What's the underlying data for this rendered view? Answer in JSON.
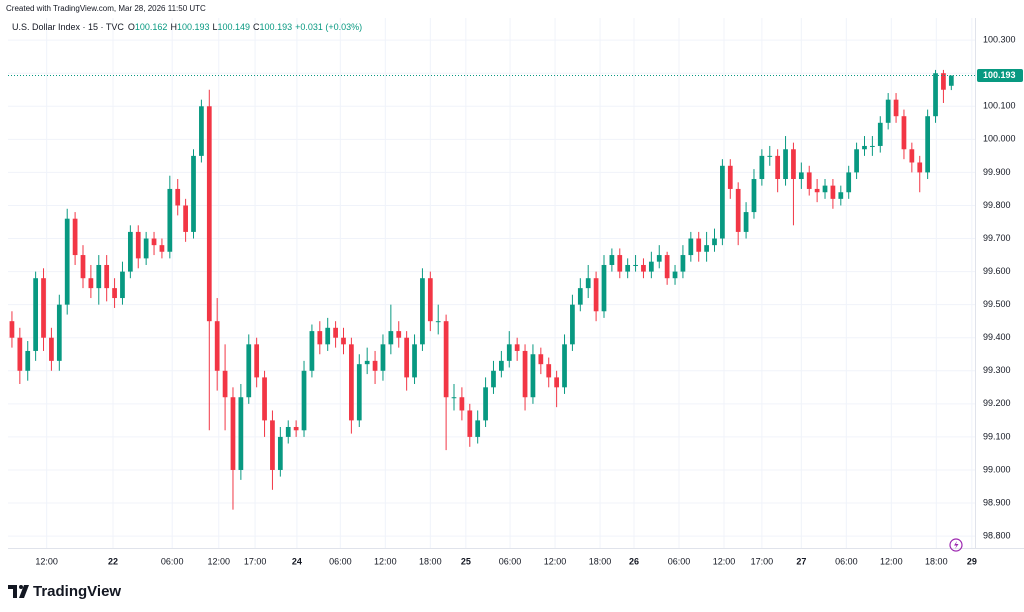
{
  "chart_data": {
    "type": "candlestick",
    "created": "Created with TradingView.com, Mar 28, 2026 11:50 UTC",
    "title": "U.S. Dollar Index · 15 · TVC",
    "ohlc_labels": [
      "O",
      "H",
      "L",
      "C"
    ],
    "change": "+0.031 (+0.03%)",
    "brand": "TradingView",
    "up_color": "#089981",
    "down_color": "#f23645",
    "grid": true,
    "open": [
      99.45,
      99.4,
      99.3,
      99.36,
      99.58,
      99.4,
      99.33,
      99.5,
      99.76,
      99.65,
      99.58,
      99.55,
      99.62,
      99.55,
      99.52,
      99.6,
      99.72,
      99.64,
      99.7,
      99.68,
      99.66,
      99.85,
      99.8,
      99.72,
      99.95,
      100.1,
      99.45,
      99.3,
      99.22,
      99.0,
      99.22,
      99.38,
      99.28,
      99.15,
      99.0,
      99.1,
      99.13,
      99.12,
      99.3,
      99.42,
      99.38,
      99.43,
      99.4,
      99.38,
      99.15,
      99.32,
      99.33,
      99.3,
      99.38,
      99.42,
      99.4,
      99.28,
      99.38,
      99.58,
      99.45,
      99.45,
      99.22,
      99.22,
      99.18,
      99.1,
      99.15,
      99.25,
      99.3,
      99.33,
      99.38,
      99.36,
      99.22,
      99.35,
      99.32,
      99.28,
      99.25,
      99.38,
      99.5,
      99.55,
      99.58,
      99.48,
      99.62,
      99.65,
      99.6,
      99.62,
      99.62,
      99.6,
      99.63,
      99.65,
      99.58,
      99.6,
      99.65,
      99.7,
      99.66,
      99.68,
      99.7,
      99.92,
      99.85,
      99.72,
      99.78,
      99.88,
      99.95,
      99.95,
      99.88,
      99.97,
      99.88,
      99.9,
      99.85,
      99.84,
      99.86,
      99.82,
      99.84,
      99.9,
      99.97,
      99.98,
      99.98,
      100.05,
      100.12,
      100.07,
      99.97,
      99.93,
      99.9,
      100.07,
      100.2,
      100.162
    ],
    "high": [
      99.48,
      99.43,
      99.39,
      99.6,
      99.61,
      99.43,
      99.53,
      99.79,
      99.78,
      99.68,
      99.62,
      99.65,
      99.65,
      99.58,
      99.63,
      99.74,
      99.74,
      99.72,
      99.72,
      99.7,
      99.89,
      99.88,
      99.82,
      99.97,
      100.12,
      100.15,
      99.52,
      99.38,
      99.25,
      99.26,
      99.41,
      99.4,
      99.3,
      99.18,
      99.13,
      99.15,
      99.15,
      99.33,
      99.44,
      99.45,
      99.46,
      99.45,
      99.43,
      99.4,
      99.35,
      99.37,
      99.36,
      99.41,
      99.5,
      99.45,
      99.42,
      99.41,
      99.61,
      99.6,
      99.5,
      99.47,
      99.26,
      99.25,
      99.2,
      99.18,
      99.28,
      99.33,
      99.36,
      99.42,
      99.4,
      99.38,
      99.38,
      99.37,
      99.34,
      99.3,
      99.41,
      99.53,
      99.58,
      99.62,
      99.6,
      99.65,
      99.67,
      99.67,
      99.64,
      99.65,
      99.64,
      99.66,
      99.68,
      99.66,
      99.62,
      99.68,
      99.72,
      99.72,
      99.72,
      99.73,
      99.94,
      99.94,
      99.87,
      99.81,
      99.91,
      99.97,
      99.98,
      99.97,
      100.01,
      99.99,
      99.93,
      99.92,
      99.88,
      99.88,
      99.88,
      99.86,
      99.92,
      99.99,
      100.01,
      100.01,
      100.07,
      100.14,
      100.14,
      100.09,
      99.99,
      99.95,
      100.09,
      100.21,
      100.21,
      100.193
    ],
    "low": [
      99.37,
      99.26,
      99.27,
      99.33,
      99.36,
      99.3,
      99.3,
      99.47,
      99.62,
      99.55,
      99.52,
      99.5,
      99.51,
      99.49,
      99.5,
      99.58,
      99.61,
      99.62,
      99.65,
      99.64,
      99.64,
      99.77,
      99.69,
      99.7,
      99.93,
      99.12,
      99.24,
      99.12,
      98.88,
      98.97,
      99.2,
      99.25,
      99.1,
      98.94,
      98.98,
      99.08,
      99.1,
      99.1,
      99.28,
      99.35,
      99.36,
      99.37,
      99.35,
      99.11,
      99.13,
      99.29,
      99.26,
      99.27,
      99.35,
      99.37,
      99.24,
      99.26,
      99.36,
      99.42,
      99.41,
      99.06,
      99.18,
      99.15,
      99.07,
      99.08,
      99.13,
      99.23,
      99.28,
      99.31,
      99.33,
      99.18,
      99.2,
      99.29,
      99.25,
      99.19,
      99.23,
      99.36,
      99.48,
      99.52,
      99.45,
      99.46,
      99.6,
      99.58,
      99.58,
      99.6,
      99.58,
      99.58,
      99.61,
      99.56,
      99.56,
      99.58,
      99.63,
      99.63,
      99.63,
      99.66,
      99.68,
      99.82,
      99.68,
      99.7,
      99.76,
      99.86,
      99.92,
      99.84,
      99.86,
      99.74,
      99.85,
      99.83,
      99.81,
      99.82,
      99.79,
      99.8,
      99.82,
      99.88,
      99.95,
      99.95,
      99.96,
      100.03,
      100.05,
      99.94,
      99.9,
      99.84,
      99.88,
      100.05,
      100.11,
      100.149
    ],
    "close": [
      99.4,
      99.3,
      99.36,
      99.58,
      99.4,
      99.33,
      99.5,
      99.76,
      99.65,
      99.58,
      99.55,
      99.62,
      99.55,
      99.52,
      99.6,
      99.72,
      99.64,
      99.7,
      99.68,
      99.66,
      99.85,
      99.8,
      99.72,
      99.95,
      100.1,
      99.45,
      99.3,
      99.22,
      99.0,
      99.22,
      99.38,
      99.28,
      99.15,
      99.0,
      99.1,
      99.13,
      99.12,
      99.3,
      99.42,
      99.38,
      99.43,
      99.4,
      99.38,
      99.15,
      99.32,
      99.33,
      99.3,
      99.38,
      99.42,
      99.4,
      99.28,
      99.38,
      99.58,
      99.45,
      99.45,
      99.22,
      99.22,
      99.18,
      99.1,
      99.15,
      99.25,
      99.3,
      99.33,
      99.38,
      99.36,
      99.22,
      99.35,
      99.32,
      99.28,
      99.25,
      99.38,
      99.5,
      99.55,
      99.58,
      99.48,
      99.62,
      99.65,
      99.6,
      99.62,
      99.62,
      99.6,
      99.63,
      99.65,
      99.58,
      99.6,
      99.65,
      99.7,
      99.66,
      99.68,
      99.7,
      99.92,
      99.85,
      99.72,
      99.78,
      99.88,
      99.95,
      99.95,
      99.88,
      99.97,
      99.88,
      99.9,
      99.85,
      99.84,
      99.86,
      99.82,
      99.84,
      99.9,
      99.97,
      99.98,
      99.98,
      100.05,
      100.12,
      100.07,
      99.97,
      99.93,
      99.9,
      100.07,
      100.2,
      100.15,
      100.193
    ],
    "ylim": [
      98.764,
      100.367
    ],
    "yticks": [
      {
        "value": 98.8,
        "label": "98.800"
      },
      {
        "value": 98.9,
        "label": "98.900"
      },
      {
        "value": 99.0,
        "label": "99.000"
      },
      {
        "value": 99.1,
        "label": "99.100"
      },
      {
        "value": 99.2,
        "label": "99.200"
      },
      {
        "value": 99.3,
        "label": "99.300"
      },
      {
        "value": 99.4,
        "label": "99.400"
      },
      {
        "value": 99.5,
        "label": "99.500"
      },
      {
        "value": 99.6,
        "label": "99.600"
      },
      {
        "value": 99.7,
        "label": "99.700"
      },
      {
        "value": 99.8,
        "label": "99.800"
      },
      {
        "value": 99.9,
        "label": "99.900"
      },
      {
        "value": 100.0,
        "label": "100.000"
      },
      {
        "value": 100.1,
        "label": "100.100"
      },
      {
        "value": 100.2,
        "label": "100.200"
      },
      {
        "value": 100.3,
        "label": "100.300"
      }
    ],
    "xlim": [
      -0.5,
      122
    ],
    "xticks": [
      {
        "value": 4.4,
        "label": "12:00"
      },
      {
        "value": 12.8,
        "label": "22"
      },
      {
        "value": 20.3,
        "label": "06:00"
      },
      {
        "value": 26.2,
        "label": "12:00"
      },
      {
        "value": 30.8,
        "label": "17:00"
      },
      {
        "value": 36.1,
        "label": "24"
      },
      {
        "value": 41.6,
        "label": "06:00"
      },
      {
        "value": 47.3,
        "label": "12:00"
      },
      {
        "value": 53.0,
        "label": "18:00"
      },
      {
        "value": 57.5,
        "label": "25"
      },
      {
        "value": 63.1,
        "label": "06:00"
      },
      {
        "value": 68.8,
        "label": "12:00"
      },
      {
        "value": 74.5,
        "label": "18:00"
      },
      {
        "value": 78.8,
        "label": "26"
      },
      {
        "value": 84.5,
        "label": "06:00"
      },
      {
        "value": 90.2,
        "label": "12:00"
      },
      {
        "value": 95.0,
        "label": "17:00"
      },
      {
        "value": 100.0,
        "label": "27"
      },
      {
        "value": 105.7,
        "label": "06:00"
      },
      {
        "value": 111.4,
        "label": "12:00"
      },
      {
        "value": 117.1,
        "label": "18:00"
      },
      {
        "value": 121.6,
        "label": "29"
      }
    ]
  }
}
